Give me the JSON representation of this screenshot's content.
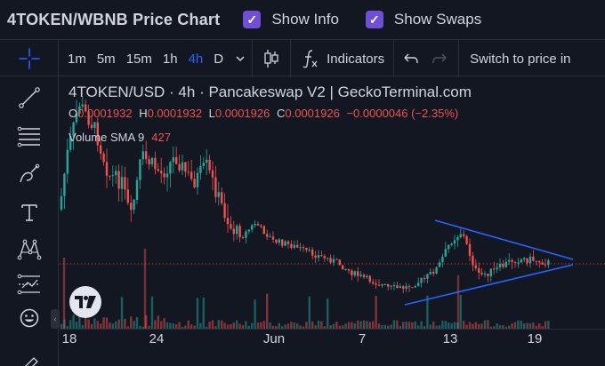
{
  "header": {
    "title": "4TOKEN/WBNB Price Chart",
    "show_info_label": "Show Info",
    "show_swaps_label": "Show Swaps",
    "show_info_checked": true,
    "show_swaps_checked": true
  },
  "toolbar": {
    "intervals": [
      "1m",
      "5m",
      "15m",
      "1h",
      "4h",
      "D"
    ],
    "active_interval": "4h",
    "indicators_label": "Indicators",
    "switch_label": "Switch to price in"
  },
  "sidebar": {
    "tools": [
      "crosshair-icon",
      "trend-line-icon",
      "horizontal-lines-icon",
      "brush-icon",
      "text-icon",
      "pattern-icon",
      "measure-icon",
      "emoji-icon",
      "ruler-icon"
    ]
  },
  "legend": {
    "title": "4TOKEN/USD · 4h · Pancakeswap V2 | GeckoTerminal.com",
    "o_label": "O",
    "o_value": "0.0001932",
    "h_label": "H",
    "h_value": "0.0001932",
    "l_label": "L",
    "l_value": "0.0001926",
    "c_label": "C",
    "c_value": "0.0001926",
    "change": "−0.0000046 (−2.35%)",
    "volume_label": "Volume SMA 9",
    "volume_value": "427"
  },
  "time_axis": {
    "ticks": [
      "18",
      "24",
      "Jun",
      "7",
      "13",
      "19"
    ]
  },
  "colors": {
    "background": "#131722",
    "up": "#26a69a",
    "down": "#ef5350",
    "accent": "#2962ff",
    "checkbox": "#6f4fd6",
    "triangle": "#2962ff"
  }
}
